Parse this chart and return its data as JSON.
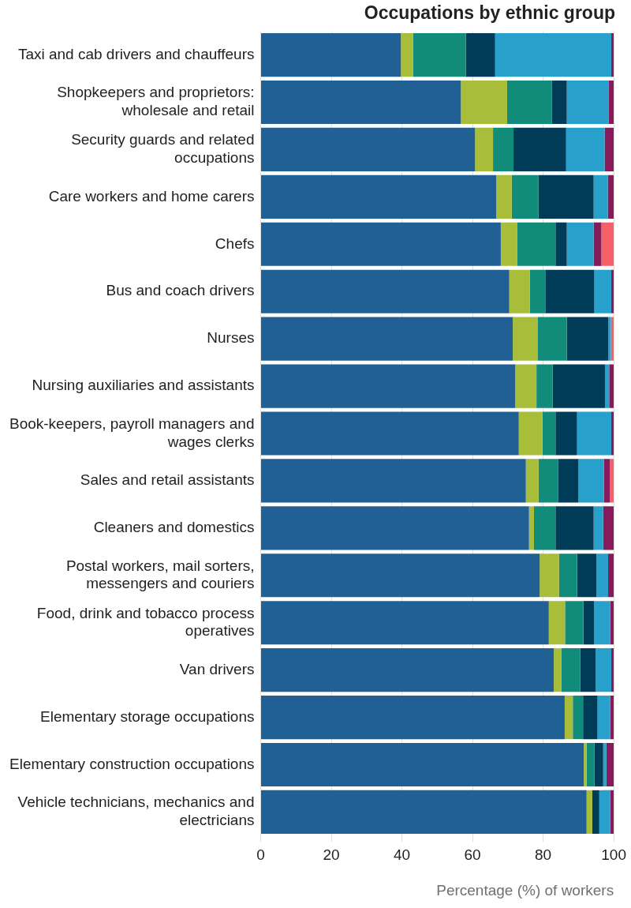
{
  "chart_data": {
    "type": "bar",
    "title": "Occupations by ethnic group",
    "xlabel": "Percentage (%) of workers",
    "orientation": "horizontal",
    "stacked": true,
    "grid": "x",
    "legend": false,
    "categories": [
      "Taxi and cab drivers and chauffeurs",
      "Shopkeepers and proprietors: wholesale and retail",
      "Security guards and related occupations",
      "Care workers and home carers",
      "Chefs",
      "Bus and coach drivers",
      "Nurses",
      "Nursing auxiliaries and assistants",
      "Book-keepers, payroll managers and wages clerks",
      "Sales and retail assistants",
      "Cleaners and domestics",
      "Postal workers, mail sorters, messengers and couriers",
      "Food, drink and tobacco process operatives",
      "Van drivers",
      "Elementary storage occupations",
      "Elementary construction occupations",
      "Vehicle technicians, mechanics and electricians"
    ],
    "xlim": [
      0,
      100
    ],
    "xticks": [
      0,
      20,
      40,
      60,
      80,
      100
    ],
    "series": [
      {
        "color": "#206095",
        "values": [
          39.7,
          56.7,
          60.7,
          66.7,
          68.0,
          70.4,
          71.4,
          72.1,
          73.1,
          75.1,
          76.0,
          79.0,
          81.6,
          83.0,
          86.1,
          91.5,
          92.3
        ]
      },
      {
        "color": "#a8bd3a",
        "values": [
          3.5,
          13.1,
          5.1,
          4.4,
          4.6,
          5.8,
          7.0,
          6.0,
          6.7,
          3.6,
          1.4,
          5.5,
          4.6,
          2.2,
          2.3,
          0.8,
          1.6
        ]
      },
      {
        "color": "#118c7b",
        "values": [
          14.9,
          12.7,
          5.8,
          7.6,
          10.9,
          4.4,
          8.3,
          4.6,
          3.7,
          5.6,
          6.1,
          5.1,
          5.2,
          5.3,
          2.9,
          2.2,
          0
        ]
      },
      {
        "color": "#003c57",
        "values": [
          8.3,
          4.2,
          14.9,
          15.6,
          3.2,
          13.9,
          11.7,
          14.8,
          6.1,
          5.7,
          10.8,
          5.5,
          3.0,
          4.4,
          4.1,
          2.5,
          2.0
        ]
      },
      {
        "color": "#27a0cc",
        "values": [
          32.9,
          11.9,
          10.9,
          4.0,
          7.6,
          4.8,
          0.8,
          1.2,
          9.7,
          7.2,
          2.7,
          3.3,
          4.6,
          4.4,
          3.6,
          0.9,
          3.1
        ]
      },
      {
        "color": "#871a5b",
        "values": [
          0.7,
          1.4,
          2.6,
          1.7,
          2.2,
          0.7,
          0,
          1.3,
          0.7,
          1.7,
          3.0,
          1.6,
          1.0,
          0.7,
          1.0,
          2.1,
          1.0
        ]
      },
      {
        "color": "#f66068",
        "values": [
          0,
          0,
          0,
          0,
          3.5,
          0,
          0.8,
          0,
          0,
          1.1,
          0,
          0,
          0,
          0,
          0,
          0,
          0
        ]
      }
    ]
  }
}
